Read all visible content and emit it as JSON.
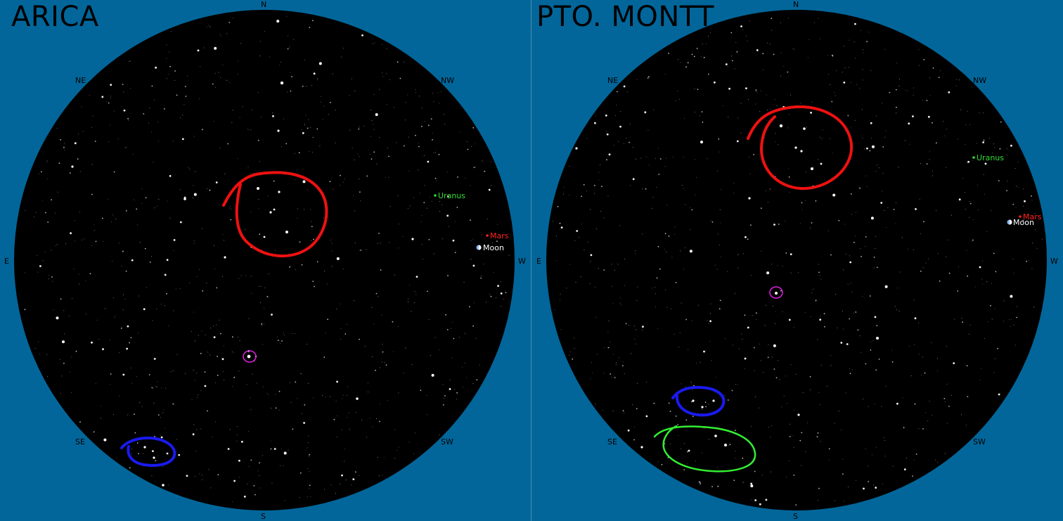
{
  "colors": {
    "background": "#02669a",
    "sky": "#000000",
    "uranus": "#33dd33",
    "mars": "#ff2020",
    "moon": "#ffffff",
    "marker_red": "#ee1111",
    "marker_blue": "#1a1aee",
    "marker_green": "#33ee33",
    "marker_magenta": "#dd22dd"
  },
  "panels": [
    {
      "city": "ARICA",
      "directions": {
        "n": "N",
        "ne": "NE",
        "e": "E",
        "se": "SE",
        "s": "S",
        "sw": "SW",
        "w": "W",
        "nw": "NW"
      },
      "planets": {
        "uranus": "Uranus",
        "mars": "Mars",
        "moon": "Moon"
      }
    },
    {
      "city": "PTO. MONTT",
      "directions": {
        "n": "N",
        "ne": "NE",
        "e": "E",
        "se": "SE",
        "s": "S",
        "sw": "SW",
        "w": "W",
        "nw": "NW"
      },
      "planets": {
        "uranus": "Uranus",
        "mars": "Mars",
        "moon": "Moon"
      }
    }
  ]
}
